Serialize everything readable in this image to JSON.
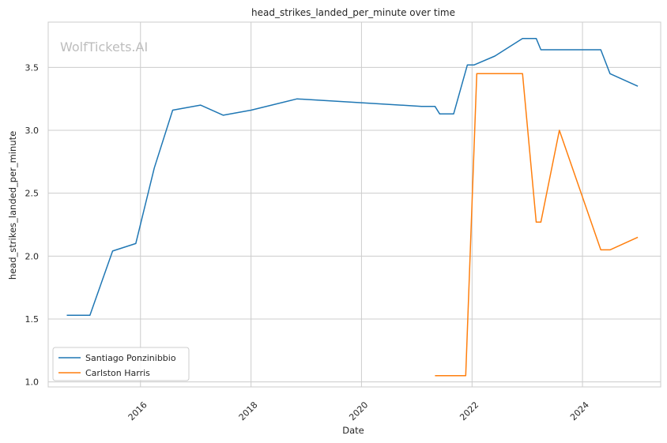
{
  "chart_data": {
    "type": "line",
    "title": "head_strikes_landed_per_minute over time",
    "xlabel": "Date",
    "ylabel": "head_strikes_landed_per_minute",
    "watermark": "WolfTickets.AI",
    "x_ticks": [
      "2016",
      "2018",
      "2020",
      "2022",
      "2024"
    ],
    "y_ticks": [
      "1.0",
      "1.5",
      "2.0",
      "2.5",
      "3.0",
      "3.5"
    ],
    "xlim": [
      "2014-05-01",
      "2025-06-01"
    ],
    "ylim": [
      0.96,
      3.86
    ],
    "grid": true,
    "legend_position": "lower-left",
    "colors": {
      "series_1": "#1f77b4",
      "series_2": "#ff7f0e",
      "grid": "#cccccc",
      "spine": "#cccccc"
    },
    "series": [
      {
        "name": "Santiago Ponzinibbio",
        "color": "#1f77b4",
        "points": [
          [
            "2014-09-01",
            1.53
          ],
          [
            "2015-02-01",
            1.53
          ],
          [
            "2015-07-01",
            2.04
          ],
          [
            "2015-12-01",
            2.1
          ],
          [
            "2016-04-01",
            2.7
          ],
          [
            "2016-08-01",
            3.16
          ],
          [
            "2017-02-01",
            3.2
          ],
          [
            "2017-07-01",
            3.12
          ],
          [
            "2018-01-01",
            3.16
          ],
          [
            "2018-11-01",
            3.25
          ],
          [
            "2021-02-01",
            3.19
          ],
          [
            "2021-05-01",
            3.19
          ],
          [
            "2021-06-01",
            3.13
          ],
          [
            "2021-09-01",
            3.13
          ],
          [
            "2021-12-01",
            3.52
          ],
          [
            "2022-01-15",
            3.52
          ],
          [
            "2022-06-01",
            3.59
          ],
          [
            "2022-12-01",
            3.73
          ],
          [
            "2023-03-01",
            3.73
          ],
          [
            "2023-04-01",
            3.64
          ],
          [
            "2024-05-01",
            3.64
          ],
          [
            "2024-07-01",
            3.45
          ],
          [
            "2025-01-01",
            3.35
          ]
        ]
      },
      {
        "name": "Carlston Harris",
        "color": "#ff7f0e",
        "points": [
          [
            "2021-05-01",
            1.05
          ],
          [
            "2021-11-20",
            1.05
          ],
          [
            "2022-02-01",
            3.45
          ],
          [
            "2022-12-01",
            3.45
          ],
          [
            "2023-03-01",
            2.27
          ],
          [
            "2023-04-01",
            2.27
          ],
          [
            "2023-08-01",
            3.0
          ],
          [
            "2024-05-01",
            2.05
          ],
          [
            "2024-07-01",
            2.05
          ],
          [
            "2025-01-01",
            2.15
          ]
        ]
      }
    ]
  }
}
